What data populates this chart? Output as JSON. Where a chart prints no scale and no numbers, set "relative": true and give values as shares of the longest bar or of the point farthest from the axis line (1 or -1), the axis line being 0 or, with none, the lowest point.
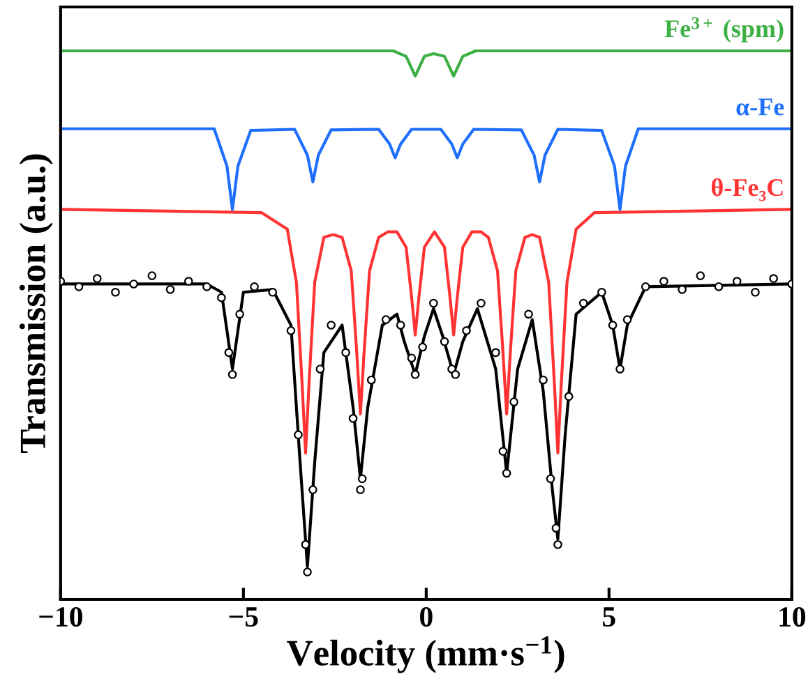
{
  "chart_data": {
    "type": "line",
    "relative": true,
    "xlabel": "Velocity (mm·s$^{−1}$)",
    "ylabel": "Transmission (a.u.)",
    "xlim": [
      -10,
      10
    ],
    "xticks": [
      {
        "value": -10,
        "label": "−10"
      },
      {
        "value": -5,
        "label": "−5"
      },
      0,
      5,
      10
    ],
    "grid": false,
    "legend": false,
    "series": [
      {
        "name": "Fe$^{3+}$ (spm)",
        "color": "#3cb043",
        "x": [
          -10,
          -0.9,
          -0.55,
          -0.3,
          -0.05,
          0.2,
          0.5,
          0.75,
          1.0,
          1.35,
          10
        ],
        "values": [
          1,
          1,
          0.99,
          0.954,
          0.99,
          0.995,
          0.99,
          0.954,
          0.99,
          1,
          1
        ]
      },
      {
        "name": "α-Fe",
        "color": "#1f6fff",
        "x": [
          -10,
          -5.8,
          -5.45,
          -5.3,
          -5.15,
          -4.8,
          -3.6,
          -3.25,
          -3.1,
          -2.95,
          -2.6,
          -1.3,
          -1.0,
          -0.85,
          -0.7,
          -0.4,
          0.4,
          0.7,
          0.85,
          1.0,
          1.3,
          2.6,
          2.95,
          3.1,
          3.25,
          3.6,
          4.8,
          5.15,
          5.3,
          5.45,
          5.8,
          10
        ],
        "values": [
          0.858,
          0.858,
          0.79,
          0.711,
          0.79,
          0.855,
          0.857,
          0.81,
          0.761,
          0.81,
          0.856,
          0.857,
          0.83,
          0.805,
          0.83,
          0.857,
          0.857,
          0.83,
          0.805,
          0.83,
          0.857,
          0.856,
          0.81,
          0.761,
          0.81,
          0.857,
          0.855,
          0.79,
          0.711,
          0.79,
          0.858,
          0.858
        ]
      },
      {
        "name": "θ-Fe₃C",
        "color": "#ff3333",
        "x": [
          -10,
          -4.5,
          -3.8,
          -3.55,
          -3.4,
          -3.3,
          -3.2,
          -3.05,
          -2.8,
          -2.55,
          -2.3,
          -2.05,
          -1.9,
          -1.8,
          -1.7,
          -1.55,
          -1.3,
          -1.05,
          -0.8,
          -0.55,
          -0.4,
          -0.3,
          -0.2,
          -0.05,
          0.225,
          0.5,
          0.65,
          0.75,
          0.85,
          1.0,
          1.25,
          1.5,
          1.7,
          1.95,
          2.1,
          2.2,
          2.3,
          2.45,
          2.7,
          2.9,
          3.1,
          3.35,
          3.5,
          3.6,
          3.7,
          3.85,
          4.1,
          4.6,
          10
        ],
        "values": [
          0.711,
          0.705,
          0.675,
          0.578,
          0.4,
          0.267,
          0.4,
          0.578,
          0.66,
          0.665,
          0.66,
          0.599,
          0.45,
          0.338,
          0.45,
          0.599,
          0.66,
          0.67,
          0.67,
          0.642,
          0.551,
          0.482,
          0.551,
          0.642,
          0.67,
          0.642,
          0.551,
          0.482,
          0.551,
          0.642,
          0.67,
          0.67,
          0.66,
          0.599,
          0.45,
          0.338,
          0.45,
          0.599,
          0.66,
          0.665,
          0.66,
          0.578,
          0.4,
          0.267,
          0.4,
          0.578,
          0.675,
          0.705,
          0.711
        ]
      },
      {
        "type": "line",
        "color": "#000000",
        "x": [
          -10,
          -6,
          -5.6,
          -5.3,
          -5.0,
          -4.2,
          -3.7,
          -3.45,
          -3.25,
          -3.05,
          -2.8,
          -2.3,
          -2.0,
          -1.8,
          -1.6,
          -1.2,
          -0.8,
          -0.6,
          -0.3,
          -0.05,
          0.2,
          0.45,
          0.75,
          1.0,
          1.4,
          1.9,
          2.2,
          2.5,
          2.9,
          3.2,
          3.45,
          3.6,
          3.8,
          4.1,
          4.8,
          5.1,
          5.3,
          5.5,
          6,
          10
        ],
        "values": [
          0.575,
          0.575,
          0.56,
          0.42,
          0.56,
          0.565,
          0.5,
          0.25,
          0.06,
          0.25,
          0.45,
          0.5,
          0.35,
          0.22,
          0.35,
          0.5,
          0.52,
          0.47,
          0.41,
          0.48,
          0.53,
          0.48,
          0.41,
          0.47,
          0.53,
          0.42,
          0.23,
          0.42,
          0.51,
          0.38,
          0.2,
          0.11,
          0.3,
          0.52,
          0.56,
          0.5,
          0.42,
          0.5,
          0.57,
          0.575
        ]
      },
      {
        "type": "scatter",
        "marker": "circle",
        "color": "#000000",
        "x": [
          -10,
          -9.5,
          -9,
          -8.5,
          -8,
          -7.5,
          -7,
          -6.5,
          -6,
          -5.6,
          -5.4,
          -5.3,
          -5.1,
          -4.7,
          -4.2,
          -3.7,
          -3.5,
          -3.3,
          -3.25,
          -3.1,
          -2.9,
          -2.6,
          -2.2,
          -2.0,
          -1.8,
          -1.75,
          -1.5,
          -1.1,
          -0.7,
          -0.4,
          -0.3,
          -0.1,
          0.2,
          0.5,
          0.7,
          0.8,
          1.1,
          1.5,
          1.9,
          2.1,
          2.2,
          2.4,
          2.8,
          3.2,
          3.4,
          3.55,
          3.6,
          3.9,
          4.3,
          4.8,
          5.1,
          5.3,
          5.5,
          6,
          6.5,
          7,
          7.5,
          8,
          8.5,
          9,
          9.5,
          10
        ],
        "values": [
          0.58,
          0.57,
          0.585,
          0.56,
          0.575,
          0.59,
          0.565,
          0.58,
          0.57,
          0.55,
          0.45,
          0.41,
          0.52,
          0.57,
          0.56,
          0.49,
          0.3,
          0.1,
          0.05,
          0.2,
          0.42,
          0.5,
          0.45,
          0.33,
          0.2,
          0.22,
          0.4,
          0.51,
          0.5,
          0.44,
          0.41,
          0.46,
          0.54,
          0.47,
          0.42,
          0.41,
          0.49,
          0.54,
          0.45,
          0.27,
          0.23,
          0.36,
          0.52,
          0.4,
          0.22,
          0.13,
          0.1,
          0.37,
          0.54,
          0.56,
          0.5,
          0.42,
          0.51,
          0.57,
          0.58,
          0.565,
          0.59,
          0.57,
          0.58,
          0.56,
          0.585,
          0.575
        ]
      }
    ]
  }
}
